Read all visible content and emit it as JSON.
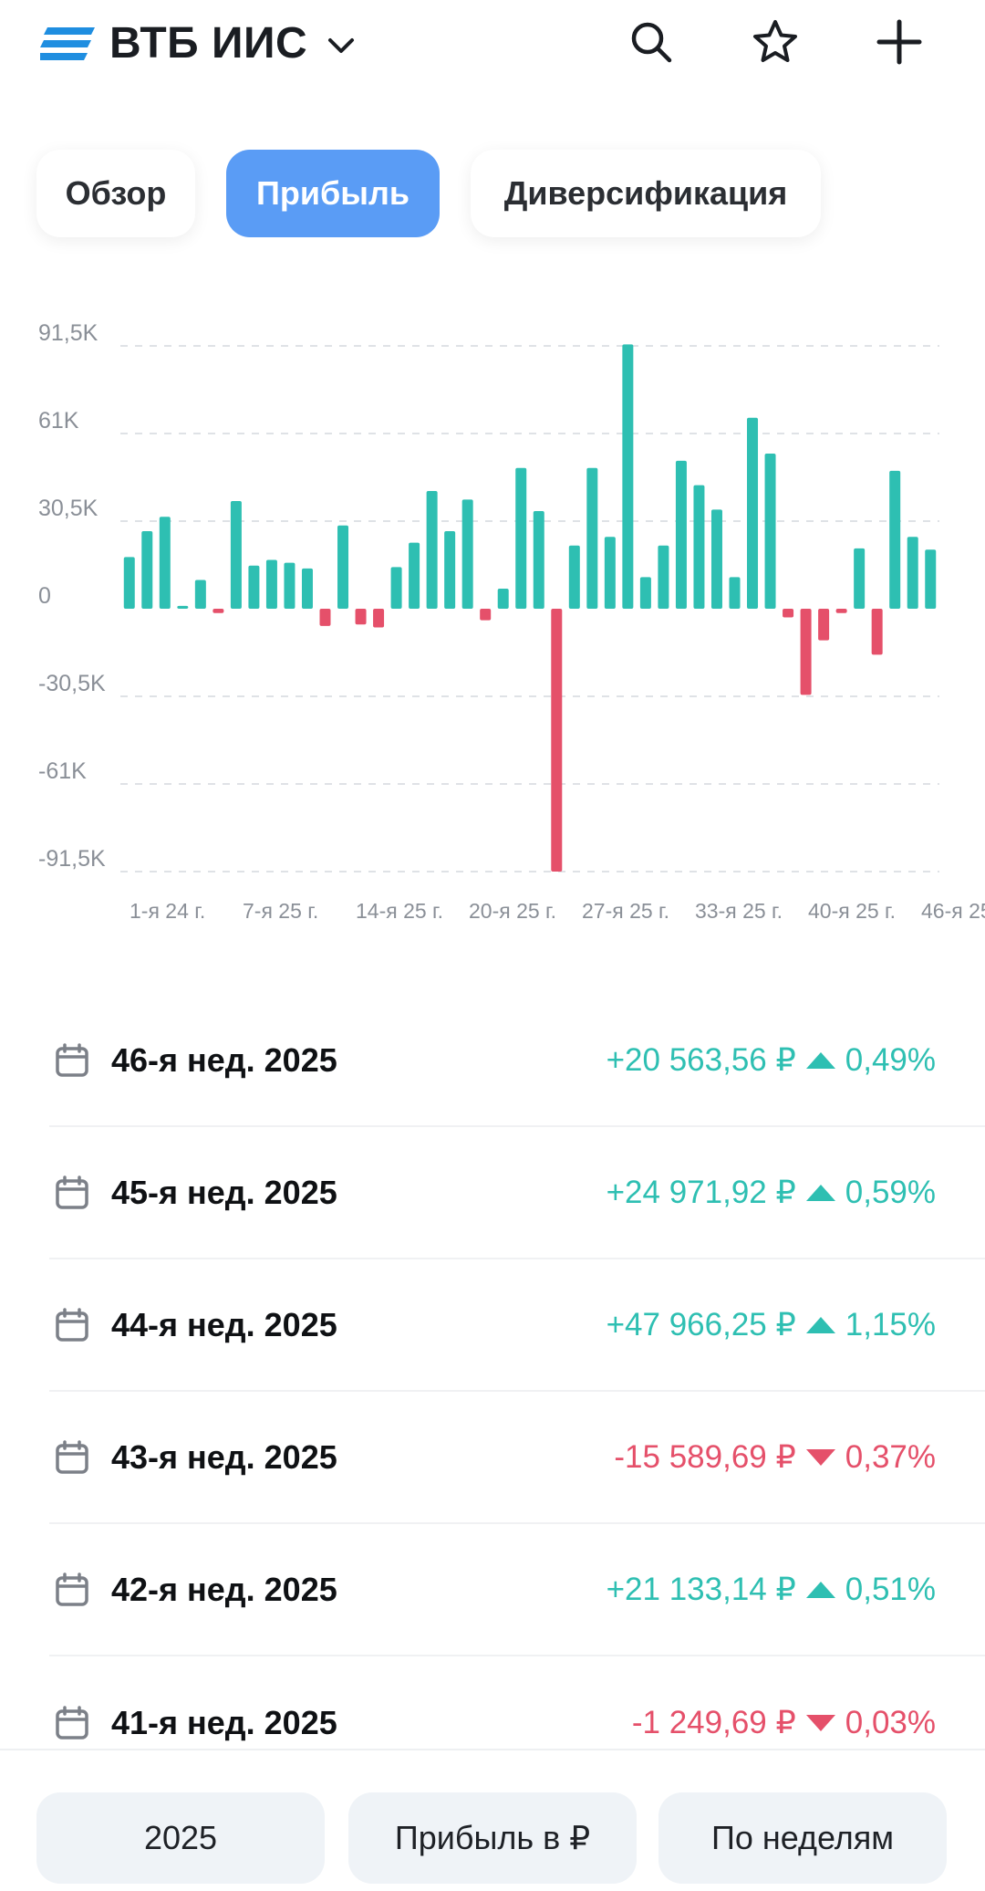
{
  "header": {
    "title": "ВТБ ИИС",
    "icons": [
      "menu-lines-icon",
      "chevron-down-icon",
      "search-icon",
      "star-icon",
      "plus-icon"
    ]
  },
  "tabs": [
    {
      "label": "Обзор",
      "active": false
    },
    {
      "label": "Прибыль",
      "active": true
    },
    {
      "label": "Диверсификация",
      "active": false
    }
  ],
  "colors": {
    "accent": "#5a9cf5",
    "positive": "#2ebfb2",
    "negative": "#e5506a"
  },
  "chart_data": {
    "type": "bar",
    "y_tick_labels": [
      "91,5K",
      "61K",
      "30,5K",
      "0",
      "-30,5K",
      "-61K",
      "-91,5K"
    ],
    "y_ticks": [
      91500,
      61000,
      30500,
      0,
      -30500,
      -61000,
      -91500
    ],
    "ylim": [
      -91500,
      91500
    ],
    "x_tick_labels": [
      "1-я 24 г.",
      "7-я 25 г.",
      "14-я 25 г.",
      "20-я 25 г.",
      "27-я 25 г.",
      "33-я 25 г.",
      "40-я 25 г.",
      "46-я 25 г."
    ],
    "grid": true,
    "values": [
      18000,
      27000,
      32000,
      1000,
      10000,
      -1500,
      37500,
      15000,
      17000,
      16000,
      14000,
      -6000,
      29000,
      -5500,
      -6500,
      14500,
      23000,
      41000,
      27000,
      38000,
      -4000,
      7000,
      49000,
      34000,
      -91500,
      22000,
      49000,
      25000,
      92000,
      11000,
      22000,
      51500,
      43000,
      34500,
      11000,
      66500,
      54000,
      -3000,
      -30000,
      -11000,
      -1500,
      21000,
      -16000,
      48000,
      25000,
      20563.56
    ]
  },
  "rows": [
    {
      "week": "46-я нед. 2025",
      "amount": "+20 563,56 ₽",
      "percent": "0,49%",
      "direction": "up"
    },
    {
      "week": "45-я нед. 2025",
      "amount": "+24 971,92 ₽",
      "percent": "0,59%",
      "direction": "up"
    },
    {
      "week": "44-я нед. 2025",
      "amount": "+47 966,25 ₽",
      "percent": "1,15%",
      "direction": "up"
    },
    {
      "week": "43-я нед. 2025",
      "amount": "-15 589,69 ₽",
      "percent": "0,37%",
      "direction": "down"
    },
    {
      "week": "42-я нед. 2025",
      "amount": "+21 133,14 ₽",
      "percent": "0,51%",
      "direction": "up"
    },
    {
      "week": "41-я нед. 2025",
      "amount": "-1 249,69 ₽",
      "percent": "0,03%",
      "direction": "down"
    }
  ],
  "bottom": {
    "year": "2025",
    "mode": "Прибыль в ₽",
    "period": "По неделям"
  }
}
